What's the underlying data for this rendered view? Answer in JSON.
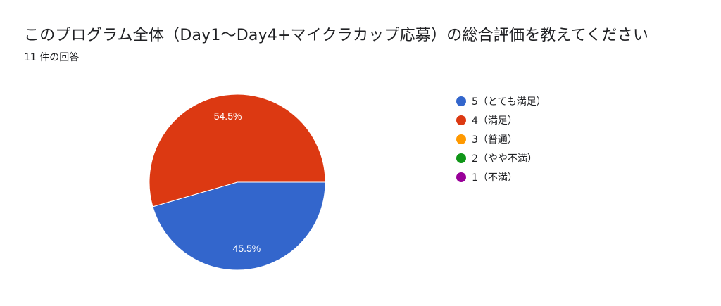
{
  "header": {
    "title": "このプログラム全体（Day1〜Day4+マイクラカップ応募）の総合評価を教えてください",
    "responses": "11 件の回答"
  },
  "chart_data": {
    "type": "pie",
    "title": "このプログラム全体（Day1〜Day4+マイクラカップ応募）の総合評価を教えてください",
    "slices": [
      {
        "label": "5（とても満足）",
        "value": 45.5,
        "display": "45.5%",
        "color": "#3366cc"
      },
      {
        "label": "4（満足）",
        "value": 54.5,
        "display": "54.5%",
        "color": "#dc3912"
      },
      {
        "label": "3（普通）",
        "value": 0,
        "display": "",
        "color": "#ff9900"
      },
      {
        "label": "2（やや不満）",
        "value": 0,
        "display": "",
        "color": "#109618"
      },
      {
        "label": "1（不満）",
        "value": 0,
        "display": "",
        "color": "#990099"
      }
    ],
    "legend_position": "right"
  }
}
